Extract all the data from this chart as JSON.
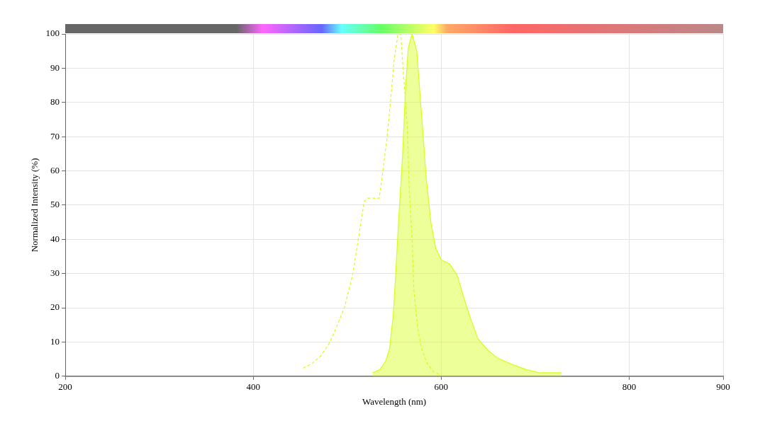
{
  "chart_data": {
    "type": "line",
    "xlabel": "Wavelength (nm)",
    "ylabel": "Normalized Intensity (%)",
    "series": [
      {
        "line_style": "dashed",
        "color": "#d4ff1a",
        "x": [
          453,
          463,
          472,
          481,
          488,
          497,
          506,
          512,
          518,
          521,
          534,
          537,
          542,
          546,
          550,
          554,
          557,
          560,
          564,
          566,
          569,
          571,
          575,
          579,
          585,
          592,
          598
        ],
        "values": [
          2.4,
          3.8,
          6,
          9.7,
          14,
          20,
          30,
          40.5,
          51,
          52,
          52,
          58,
          69,
          80,
          92.6,
          100,
          100,
          87.5,
          72.8,
          54.5,
          40,
          25,
          14,
          8.2,
          3.8,
          1.3,
          0.5
        ]
      },
      {
        "type": "area",
        "color": "#d4ff1a",
        "x": [
          527,
          535,
          541,
          545,
          549,
          552,
          555,
          559,
          562,
          565,
          569,
          574,
          580,
          584,
          589,
          594,
          600,
          609,
          617,
          624,
          631,
          639,
          650,
          660,
          675,
          690,
          705,
          728
        ],
        "values": [
          1,
          2,
          4.5,
          8,
          18,
          32,
          47,
          65,
          84,
          96,
          100,
          95,
          73,
          58,
          45,
          37.6,
          34,
          32.8,
          29.5,
          23,
          17,
          11,
          7.5,
          5.3,
          3.5,
          2,
          1,
          1
        ]
      }
    ],
    "xlim": [
      200,
      900
    ],
    "xticks": [
      200,
      400,
      600,
      800,
      900
    ],
    "ylim": [
      0,
      100
    ],
    "yticks": [
      0,
      10,
      20,
      30,
      40,
      50,
      60,
      70,
      80,
      90,
      100
    ],
    "grid": true,
    "legend": false
  }
}
